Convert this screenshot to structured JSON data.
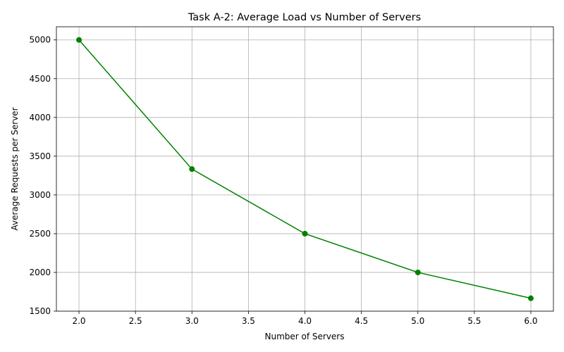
{
  "chart_data": {
    "type": "line",
    "title": "Task A-2: Average Load vs Number of Servers",
    "xlabel": "Number of Servers",
    "ylabel": "Average Requests per Server",
    "x": [
      2,
      3,
      4,
      5,
      6
    ],
    "series": [
      {
        "values": [
          5000,
          3333.33,
          2500,
          2000,
          1666.67
        ],
        "color": "#008000",
        "marker": "circle"
      }
    ],
    "xlim": [
      1.8,
      6.2
    ],
    "ylim": [
      1500,
      5170
    ],
    "xticks": [
      2.0,
      2.5,
      3.0,
      3.5,
      4.0,
      4.5,
      5.0,
      5.5,
      6.0
    ],
    "xtick_labels": [
      "2.0",
      "2.5",
      "3.0",
      "3.5",
      "4.0",
      "4.5",
      "5.0",
      "5.5",
      "6.0"
    ],
    "yticks": [
      1500,
      2000,
      2500,
      3000,
      3500,
      4000,
      4500,
      5000
    ],
    "ytick_labels": [
      "1500",
      "2000",
      "2500",
      "3000",
      "3500",
      "4000",
      "4500",
      "5000"
    ],
    "grid": true,
    "legend": false
  }
}
